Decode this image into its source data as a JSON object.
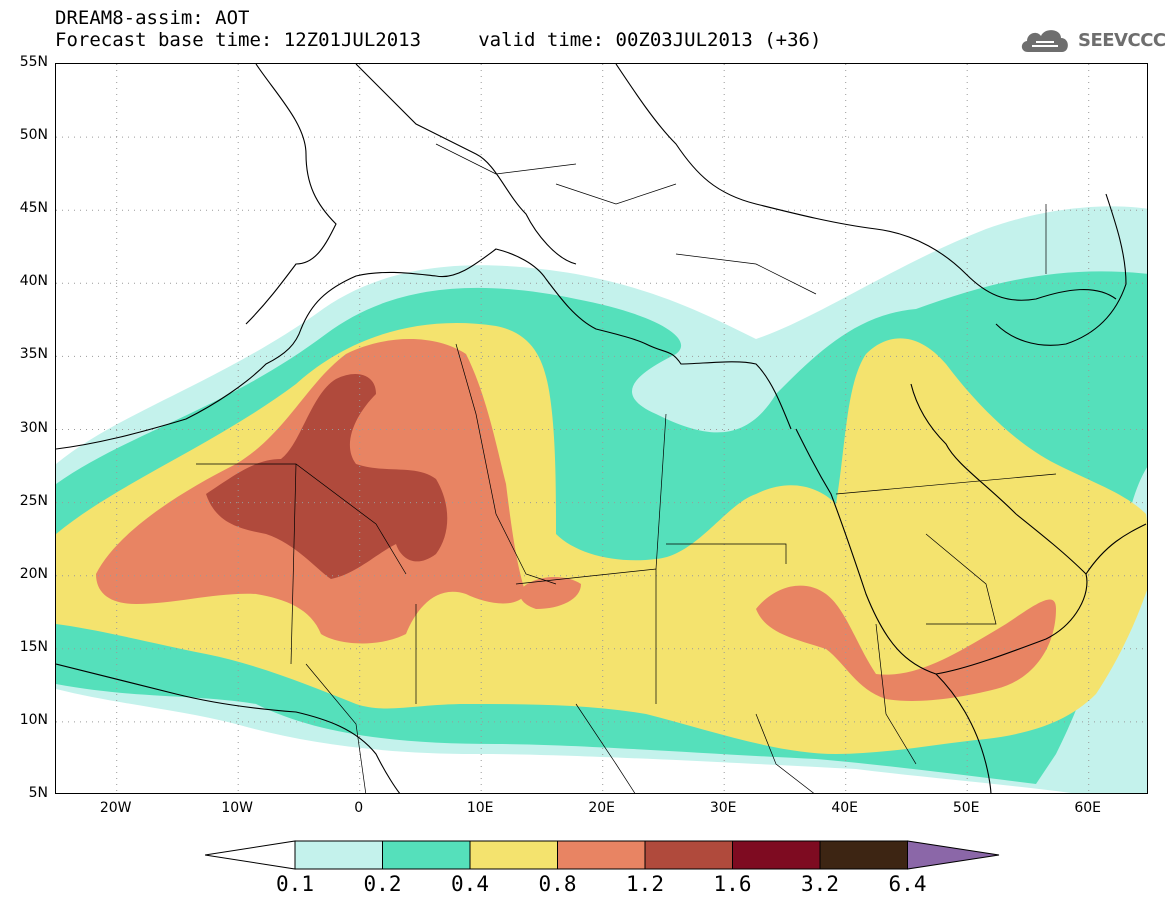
{
  "header": {
    "line1": "DREAM8-assim: AOT",
    "line2": "Forecast base time: 12Z01JUL2013     valid time: 00Z03JUL2013 (+36)"
  },
  "logo": {
    "text": "SEEVCCC",
    "icon": "cloud-icon"
  },
  "map": {
    "lat_labels": [
      "55N",
      "50N",
      "45N",
      "40N",
      "35N",
      "30N",
      "25N",
      "20N",
      "15N",
      "10N",
      "5N"
    ],
    "lon_labels": [
      "20W",
      "10W",
      "0",
      "10E",
      "20E",
      "30E",
      "40E",
      "50E",
      "60E"
    ]
  },
  "colorbar": {
    "ticks": [
      "0.1",
      "0.2",
      "0.4",
      "0.8",
      "1.2",
      "1.6",
      "3.2",
      "6.4"
    ],
    "colors": [
      "#ffffff",
      "#c4f2ec",
      "#55e0bb",
      "#f4e36e",
      "#e88463",
      "#b04a3c",
      "#7e0b21",
      "#3d2513",
      "#8b67a8"
    ]
  },
  "field_colors": {
    "c01": "#c4f2ec",
    "c02": "#55e0bb",
    "c04": "#f4e36e",
    "c08": "#e88463",
    "c12": "#b04a3c"
  }
}
